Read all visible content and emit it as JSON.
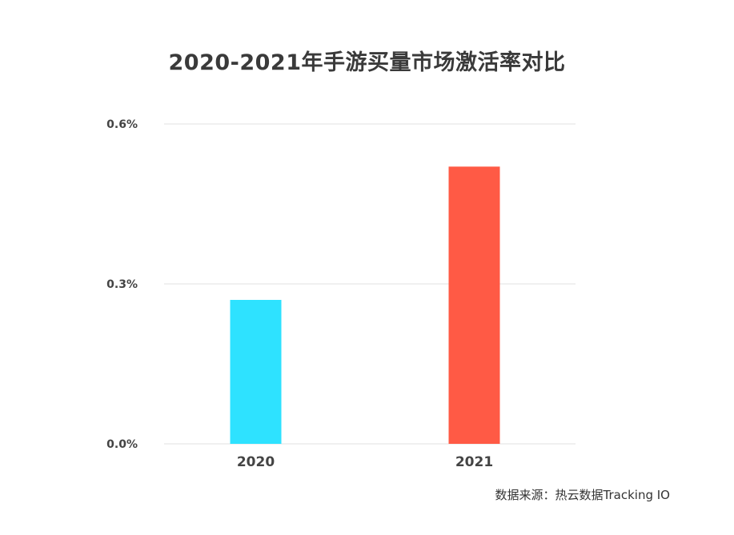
{
  "chart_data": {
    "type": "bar",
    "title": "2020-2021年手游买量市场激活率对比",
    "xlabel": "",
    "ylabel": "",
    "categories": [
      "2020",
      "2021"
    ],
    "values": [
      0.27,
      0.52
    ],
    "ylim": [
      0,
      0.6
    ],
    "y_ticks": [
      0.0,
      0.3,
      0.6
    ],
    "y_tick_labels": [
      "0.0%",
      "0.3%",
      "0.6%"
    ],
    "grid": true,
    "bar_colors": [
      "#2ee2ff",
      "#ff5a45"
    ]
  },
  "source": "数据来源：热云数据Tracking IO"
}
